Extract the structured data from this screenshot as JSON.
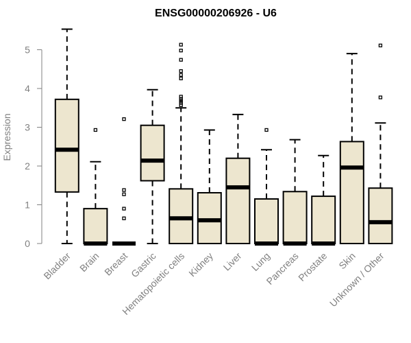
{
  "chart_data": {
    "type": "boxplot",
    "title": "ENSG00000206926 - U6",
    "xlabel": "",
    "ylabel": "Expression",
    "ylim": [
      0,
      5.5
    ],
    "yticks": [
      "0",
      "1",
      "2",
      "3",
      "4",
      "5"
    ],
    "grid": false,
    "box_fill": "#ede6cf",
    "categories": [
      "Bladder",
      "Brain",
      "Breast",
      "Gastric",
      "Hematopoietic cells",
      "Kidney",
      "Liver",
      "Lung",
      "Pancreas",
      "Prostate",
      "Skin",
      "Unknown / Other"
    ],
    "boxes": [
      {
        "whisker_low": 0,
        "q1": 1.33,
        "median": 2.42,
        "q3": 3.72,
        "whisker_high": 5.53,
        "outliers": []
      },
      {
        "whisker_low": 0,
        "q1": 0,
        "median": 0,
        "q3": 0.9,
        "whisker_high": 2.11,
        "outliers": [
          2.93
        ]
      },
      {
        "whisker_low": 0,
        "q1": 0,
        "median": 0,
        "q3": 0,
        "whisker_high": 0,
        "outliers": [
          0.65,
          0.9,
          1.27,
          1.38,
          3.21
        ]
      },
      {
        "whisker_low": 0,
        "q1": 1.62,
        "median": 2.14,
        "q3": 3.05,
        "whisker_high": 3.97,
        "outliers": []
      },
      {
        "whisker_low": 0,
        "q1": 0,
        "median": 0.65,
        "q3": 1.41,
        "whisker_high": 3.5,
        "outliers": [
          3.57,
          3.63,
          3.68,
          3.73,
          3.79,
          4.26,
          4.35,
          4.45,
          4.74,
          4.98,
          5.13
        ]
      },
      {
        "whisker_low": 0,
        "q1": 0,
        "median": 0.6,
        "q3": 1.31,
        "whisker_high": 2.93,
        "outliers": []
      },
      {
        "whisker_low": 0,
        "q1": 0,
        "median": 1.45,
        "q3": 2.2,
        "whisker_high": 3.33,
        "outliers": []
      },
      {
        "whisker_low": 0,
        "q1": 0,
        "median": 0,
        "q3": 1.15,
        "whisker_high": 2.42,
        "outliers": [
          2.93
        ]
      },
      {
        "whisker_low": 0,
        "q1": 0,
        "median": 0,
        "q3": 1.34,
        "whisker_high": 2.68,
        "outliers": []
      },
      {
        "whisker_low": 0,
        "q1": 0,
        "median": 0,
        "q3": 1.22,
        "whisker_high": 2.27,
        "outliers": []
      },
      {
        "whisker_low": 0,
        "q1": 0,
        "median": 1.96,
        "q3": 2.63,
        "whisker_high": 4.9,
        "outliers": []
      },
      {
        "whisker_low": 0,
        "q1": 0,
        "median": 0.55,
        "q3": 1.43,
        "whisker_high": 3.11,
        "outliers": [
          3.77,
          5.11
        ]
      }
    ]
  }
}
